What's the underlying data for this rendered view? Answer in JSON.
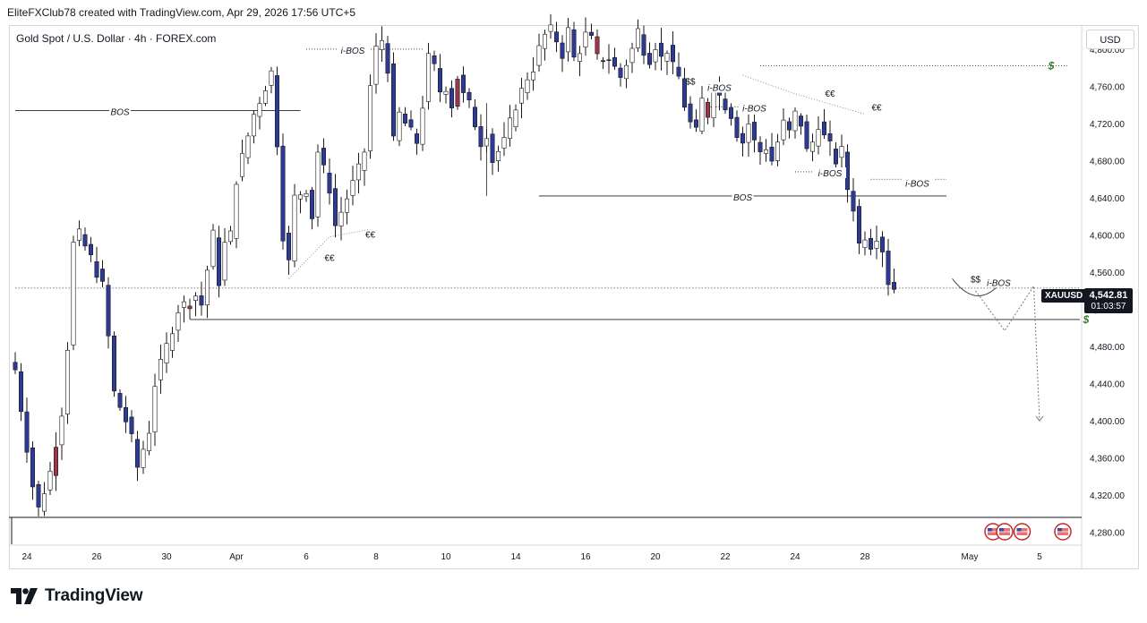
{
  "header": {
    "attribution": "EliteFXClub78 created with TradingView.com, Apr 29, 2026 17:56 UTC+5"
  },
  "symbol": {
    "title": "Gold Spot / U.S. Dollar · 4h · FOREX.com",
    "ticker": "XAUUSD",
    "currency": "USD",
    "last_price": "4,542.81",
    "countdown": "01:03:57"
  },
  "brand": {
    "name": "TradingView",
    "logo_icon": "tradingview-logo-icon"
  },
  "colors": {
    "bull": "#ffffff",
    "bear": "#2d3b97",
    "bull_highlight": "#a0344b",
    "wick": "#1a1a1a",
    "dollar_marker": "#2e7d32"
  },
  "chart_data": {
    "type": "candlestick",
    "title": "Gold Spot / U.S. Dollar · 4h · FOREX.com",
    "ylim": [
      4270,
      4825
    ],
    "y_ticks": [
      {
        "value": 4280,
        "label": "4,280.00"
      },
      {
        "value": 4320,
        "label": "4,320.00"
      },
      {
        "value": 4360,
        "label": "4,360.00"
      },
      {
        "value": 4400,
        "label": "4,400.00"
      },
      {
        "value": 4440,
        "label": "4,440.00"
      },
      {
        "value": 4480,
        "label": "4,480.00"
      },
      {
        "value": 4520,
        "label": "4,520.00"
      },
      {
        "value": 4560,
        "label": "4,560.00"
      },
      {
        "value": 4600,
        "label": "4,600.00"
      },
      {
        "value": 4640,
        "label": "4,640.00"
      },
      {
        "value": 4680,
        "label": "4,680.00"
      },
      {
        "value": 4720,
        "label": "4,720.00"
      },
      {
        "value": 4760,
        "label": "4,760.00"
      },
      {
        "value": 4800,
        "label": "4,800.00"
      }
    ],
    "x_ticks": [
      {
        "bar": 2,
        "label": "24"
      },
      {
        "bar": 14,
        "label": "26"
      },
      {
        "bar": 26,
        "label": "30"
      },
      {
        "bar": 38,
        "label": "Apr"
      },
      {
        "bar": 50,
        "label": "6"
      },
      {
        "bar": 62,
        "label": "8"
      },
      {
        "bar": 74,
        "label": "10"
      },
      {
        "bar": 86,
        "label": "14"
      },
      {
        "bar": 98,
        "label": "16"
      },
      {
        "bar": 110,
        "label": "20"
      },
      {
        "bar": 122,
        "label": "22"
      },
      {
        "bar": 134,
        "label": "24"
      },
      {
        "bar": 146,
        "label": "28"
      },
      {
        "bar": 164,
        "label": "May"
      },
      {
        "bar": 176,
        "label": "5"
      }
    ],
    "bar_count": 188,
    "last_price": 4542.81,
    "anchors": [
      [
        0,
        4455
      ],
      [
        3,
        4330
      ],
      [
        4,
        4305
      ],
      [
        6,
        4345
      ],
      [
        8,
        4410
      ],
      [
        9,
        4480
      ],
      [
        10,
        4590
      ],
      [
        11,
        4600
      ],
      [
        13,
        4575
      ],
      [
        15,
        4545
      ],
      [
        16,
        4490
      ],
      [
        17,
        4430
      ],
      [
        19,
        4400
      ],
      [
        20,
        4380
      ],
      [
        21,
        4350
      ],
      [
        23,
        4390
      ],
      [
        24,
        4440
      ],
      [
        26,
        4480
      ],
      [
        28,
        4520
      ],
      [
        31,
        4535
      ],
      [
        32,
        4525
      ],
      [
        34,
        4600
      ],
      [
        35,
        4550
      ],
      [
        36,
        4590
      ],
      [
        37,
        4600
      ],
      [
        38,
        4660
      ],
      [
        41,
        4730
      ],
      [
        43,
        4760
      ],
      [
        44,
        4775
      ],
      [
        45,
        4700
      ],
      [
        46,
        4600
      ],
      [
        47,
        4570
      ],
      [
        48,
        4640
      ],
      [
        50,
        4650
      ],
      [
        51,
        4620
      ],
      [
        52,
        4690
      ],
      [
        54,
        4650
      ],
      [
        55,
        4610
      ],
      [
        57,
        4640
      ],
      [
        59,
        4670
      ],
      [
        60,
        4690
      ],
      [
        61,
        4760
      ],
      [
        62,
        4800
      ],
      [
        63,
        4810
      ],
      [
        64,
        4780
      ],
      [
        65,
        4700
      ],
      [
        66,
        4730
      ],
      [
        67,
        4720
      ],
      [
        69,
        4700
      ],
      [
        70,
        4740
      ],
      [
        71,
        4790
      ],
      [
        72,
        4780
      ],
      [
        73,
        4755
      ],
      [
        74,
        4760
      ],
      [
        75,
        4740
      ],
      [
        76,
        4770
      ],
      [
        77,
        4750
      ],
      [
        78,
        4740
      ],
      [
        80,
        4700
      ],
      [
        81,
        4710
      ],
      [
        82,
        4680
      ],
      [
        84,
        4700
      ],
      [
        85,
        4720
      ],
      [
        86,
        4740
      ],
      [
        88,
        4770
      ],
      [
        89,
        4780
      ],
      [
        90,
        4800
      ],
      [
        91,
        4815
      ],
      [
        92,
        4820
      ],
      [
        93,
        4810
      ],
      [
        94,
        4795
      ],
      [
        95,
        4820
      ],
      [
        96,
        4790
      ],
      [
        97,
        4800
      ],
      [
        98,
        4815
      ],
      [
        99,
        4810
      ],
      [
        100,
        4790
      ],
      [
        102,
        4790
      ],
      [
        104,
        4770
      ],
      [
        106,
        4800
      ],
      [
        107,
        4820
      ],
      [
        108,
        4800
      ],
      [
        109,
        4790
      ],
      [
        110,
        4805
      ],
      [
        111,
        4790
      ],
      [
        112,
        4800
      ],
      [
        113,
        4780
      ],
      [
        114,
        4770
      ],
      [
        115,
        4740
      ],
      [
        116,
        4720
      ],
      [
        117,
        4710
      ],
      [
        118,
        4745
      ],
      [
        119,
        4730
      ],
      [
        120,
        4760
      ],
      [
        121,
        4750
      ],
      [
        122,
        4740
      ],
      [
        123,
        4730
      ],
      [
        124,
        4710
      ],
      [
        125,
        4700
      ],
      [
        126,
        4720
      ],
      [
        127,
        4700
      ],
      [
        128,
        4690
      ],
      [
        129,
        4695
      ],
      [
        130,
        4680
      ],
      [
        131,
        4700
      ],
      [
        132,
        4720
      ],
      [
        133,
        4710
      ],
      [
        134,
        4730
      ],
      [
        135,
        4720
      ],
      [
        136,
        4690
      ],
      [
        137,
        4700
      ],
      [
        138,
        4720
      ],
      [
        139,
        4705
      ],
      [
        140,
        4695
      ],
      [
        141,
        4680
      ],
      [
        142,
        4690
      ],
      [
        143,
        4650
      ],
      [
        144,
        4630
      ],
      [
        145,
        4590
      ],
      [
        146,
        4600
      ],
      [
        147,
        4590
      ],
      [
        148,
        4600
      ],
      [
        149,
        4585
      ],
      [
        150,
        4550
      ],
      [
        151,
        4542.81
      ]
    ],
    "annotations": [
      {
        "kind": "hline",
        "label": "BOS",
        "x0": 0,
        "x1": 49,
        "y": 4734
      },
      {
        "kind": "hline",
        "label": "BOS",
        "x0": 90,
        "x1": 160,
        "y": 4642
      },
      {
        "kind": "hline",
        "label": "i-BOS",
        "x0": 50,
        "x1": 70,
        "y": 4800,
        "dotted": true
      },
      {
        "kind": "hline",
        "label": "i-BOS",
        "x0": 119,
        "x1": 126,
        "y": 4738,
        "dotted": true
      },
      {
        "kind": "hline",
        "label": "i-BOS",
        "x0": 134,
        "x1": 143,
        "y": 4668,
        "dotted": true
      },
      {
        "kind": "hline",
        "label": "i-BOS",
        "x0": 147,
        "x1": 160,
        "y": 4660,
        "dotted": true
      },
      {
        "kind": "hline",
        "label": "",
        "x0": 128,
        "x1": 181,
        "y": 4782,
        "dotted": true
      },
      {
        "kind": "hline",
        "label": "",
        "x0": 30,
        "x1": 186,
        "y": 4509
      },
      {
        "kind": "hline",
        "label": "",
        "x0": 0,
        "x1": 200,
        "y": 4542.81,
        "dotted": true,
        "price_line": true
      }
    ],
    "text_labels": [
      {
        "text": "i-BOS",
        "bar": 58,
        "y": 4798
      },
      {
        "text": "BOS",
        "bar": 18,
        "y": 4732
      },
      {
        "text": "BOS",
        "bar": 125,
        "y": 4640
      },
      {
        "text": "i-BOS",
        "bar": 121,
        "y": 4758
      },
      {
        "text": "i-BOS",
        "bar": 127,
        "y": 4736
      },
      {
        "text": "i-BOS",
        "bar": 140,
        "y": 4666
      },
      {
        "text": "i-BOS",
        "bar": 155,
        "y": 4655
      },
      {
        "text": "i-BOS",
        "bar": 169,
        "y": 4548
      },
      {
        "text": "$$",
        "bar": 116,
        "y": 4765
      },
      {
        "text": "$$",
        "bar": 165,
        "y": 4552
      },
      {
        "text": "€€",
        "bar": 61,
        "y": 4600
      },
      {
        "text": "€€",
        "bar": 54,
        "y": 4575
      },
      {
        "text": "€€",
        "bar": 140,
        "y": 4752
      },
      {
        "text": "€€",
        "bar": 148,
        "y": 4737
      }
    ],
    "dollar_markers": [
      {
        "bar": 178,
        "y": 4782,
        "text": "$"
      },
      {
        "bar": 184,
        "y": 4509,
        "text": "$"
      }
    ],
    "projection": [
      [
        165,
        4540
      ],
      [
        170,
        4497
      ],
      [
        175,
        4545
      ],
      [
        176,
        4400
      ]
    ],
    "event_icons_bars": [
      168,
      170,
      173,
      180
    ]
  }
}
